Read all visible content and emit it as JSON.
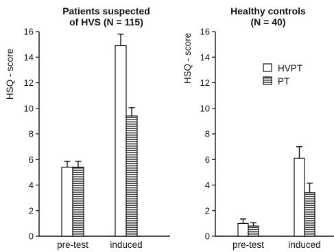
{
  "chart_data": [
    {
      "type": "bar",
      "title_lines": [
        "Patients suspected",
        "of HVS (N = 115)"
      ],
      "ylabel": "HSQ - score",
      "ylim": [
        0,
        16
      ],
      "yticks": [
        0,
        2,
        4,
        6,
        8,
        10,
        12,
        14,
        16
      ],
      "categories": [
        "pre-test",
        "induced"
      ],
      "series": [
        {
          "name": "HVPT",
          "values": [
            5.4,
            14.9
          ],
          "errors": [
            0.45,
            0.9
          ],
          "pattern": "open"
        },
        {
          "name": "PT",
          "values": [
            5.4,
            9.4
          ],
          "errors": [
            0.45,
            0.65
          ],
          "pattern": "hatched"
        }
      ]
    },
    {
      "type": "bar",
      "title_lines": [
        "Healthy controls",
        "(N = 40)"
      ],
      "ylabel": "HSQ - score",
      "ylim": [
        0,
        16
      ],
      "yticks": [
        0,
        2,
        4,
        6,
        8,
        10,
        12,
        14,
        16
      ],
      "categories": [
        "pre-test",
        "induced"
      ],
      "series": [
        {
          "name": "HVPT",
          "values": [
            1.0,
            6.1
          ],
          "errors": [
            0.35,
            0.9
          ],
          "pattern": "open"
        },
        {
          "name": "PT",
          "values": [
            0.8,
            3.4
          ],
          "errors": [
            0.25,
            0.75
          ],
          "pattern": "hatched"
        }
      ],
      "legend": {
        "position": "top-right",
        "entries": [
          "HVPT",
          "PT"
        ]
      }
    }
  ]
}
